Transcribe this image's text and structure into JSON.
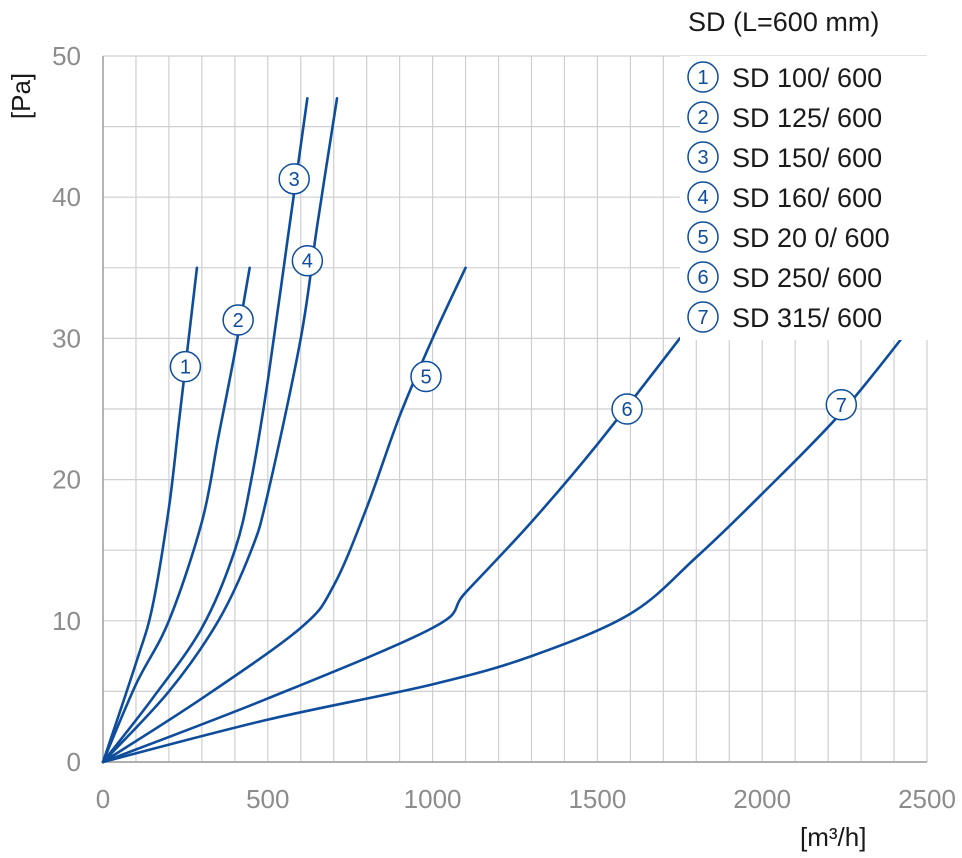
{
  "chart_data": {
    "type": "line",
    "title": "SD (L=600 mm)",
    "xlabel": "[m³/h]",
    "ylabel": "[Pa]",
    "xlim": [
      0,
      2500
    ],
    "ylim": [
      0,
      50
    ],
    "xticks": [
      0,
      500,
      1000,
      1500,
      2000,
      2500
    ],
    "yticks": [
      0,
      10,
      20,
      30,
      40,
      50
    ],
    "grid": true,
    "legend_position": "top-right",
    "line_color": "#0e4c9c",
    "series": [
      {
        "id": "1",
        "name": "SD 100/ 600",
        "x": [
          0,
          100,
          150,
          200,
          230,
          260,
          285
        ],
        "y": [
          0,
          7,
          11,
          18,
          24,
          30,
          35
        ],
        "marker": {
          "x": 250,
          "y": 28
        }
      },
      {
        "id": "2",
        "name": "SD 125/ 600",
        "x": [
          0,
          100,
          200,
          300,
          350,
          400,
          445
        ],
        "y": [
          0,
          5.5,
          10,
          17,
          23,
          29,
          35
        ],
        "marker": {
          "x": 410,
          "y": 31.3
        }
      },
      {
        "id": "3",
        "name": "SD 150/ 600",
        "x": [
          0,
          150,
          300,
          400,
          450,
          500,
          560,
          620
        ],
        "y": [
          0,
          4.5,
          9.5,
          15,
          20,
          27,
          37,
          47
        ],
        "marker": {
          "x": 580,
          "y": 41.3
        }
      },
      {
        "id": "4",
        "name": "SD 160/ 600",
        "x": [
          0,
          200,
          350,
          450,
          500,
          600,
          650,
          710
        ],
        "y": [
          0,
          5,
          10,
          15,
          19,
          30,
          38,
          47
        ],
        "marker": {
          "x": 620,
          "y": 35.5
        }
      },
      {
        "id": "5",
        "name": "SD 20 0/ 600",
        "x": [
          0,
          300,
          600,
          700,
          800,
          900,
          1000,
          1100
        ],
        "y": [
          0,
          4.5,
          9.5,
          12.5,
          18,
          24.5,
          30,
          35
        ],
        "marker": {
          "x": 980,
          "y": 27.3
        }
      },
      {
        "id": "6",
        "name": "SD 250/ 600",
        "x": [
          0,
          500,
          1000,
          1100,
          1300,
          1500,
          1750
        ],
        "y": [
          0,
          4.5,
          9.5,
          12,
          17,
          22.5,
          30
        ],
        "marker": {
          "x": 1590,
          "y": 25
        }
      },
      {
        "id": "7",
        "name": "SD 315/ 600",
        "x": [
          0,
          500,
          1000,
          1300,
          1600,
          1800,
          2000,
          2250,
          2490
        ],
        "y": [
          0,
          3,
          5.5,
          7.5,
          10.5,
          14.5,
          19,
          25,
          32
        ],
        "marker": {
          "x": 2240,
          "y": 25.3
        }
      }
    ]
  }
}
